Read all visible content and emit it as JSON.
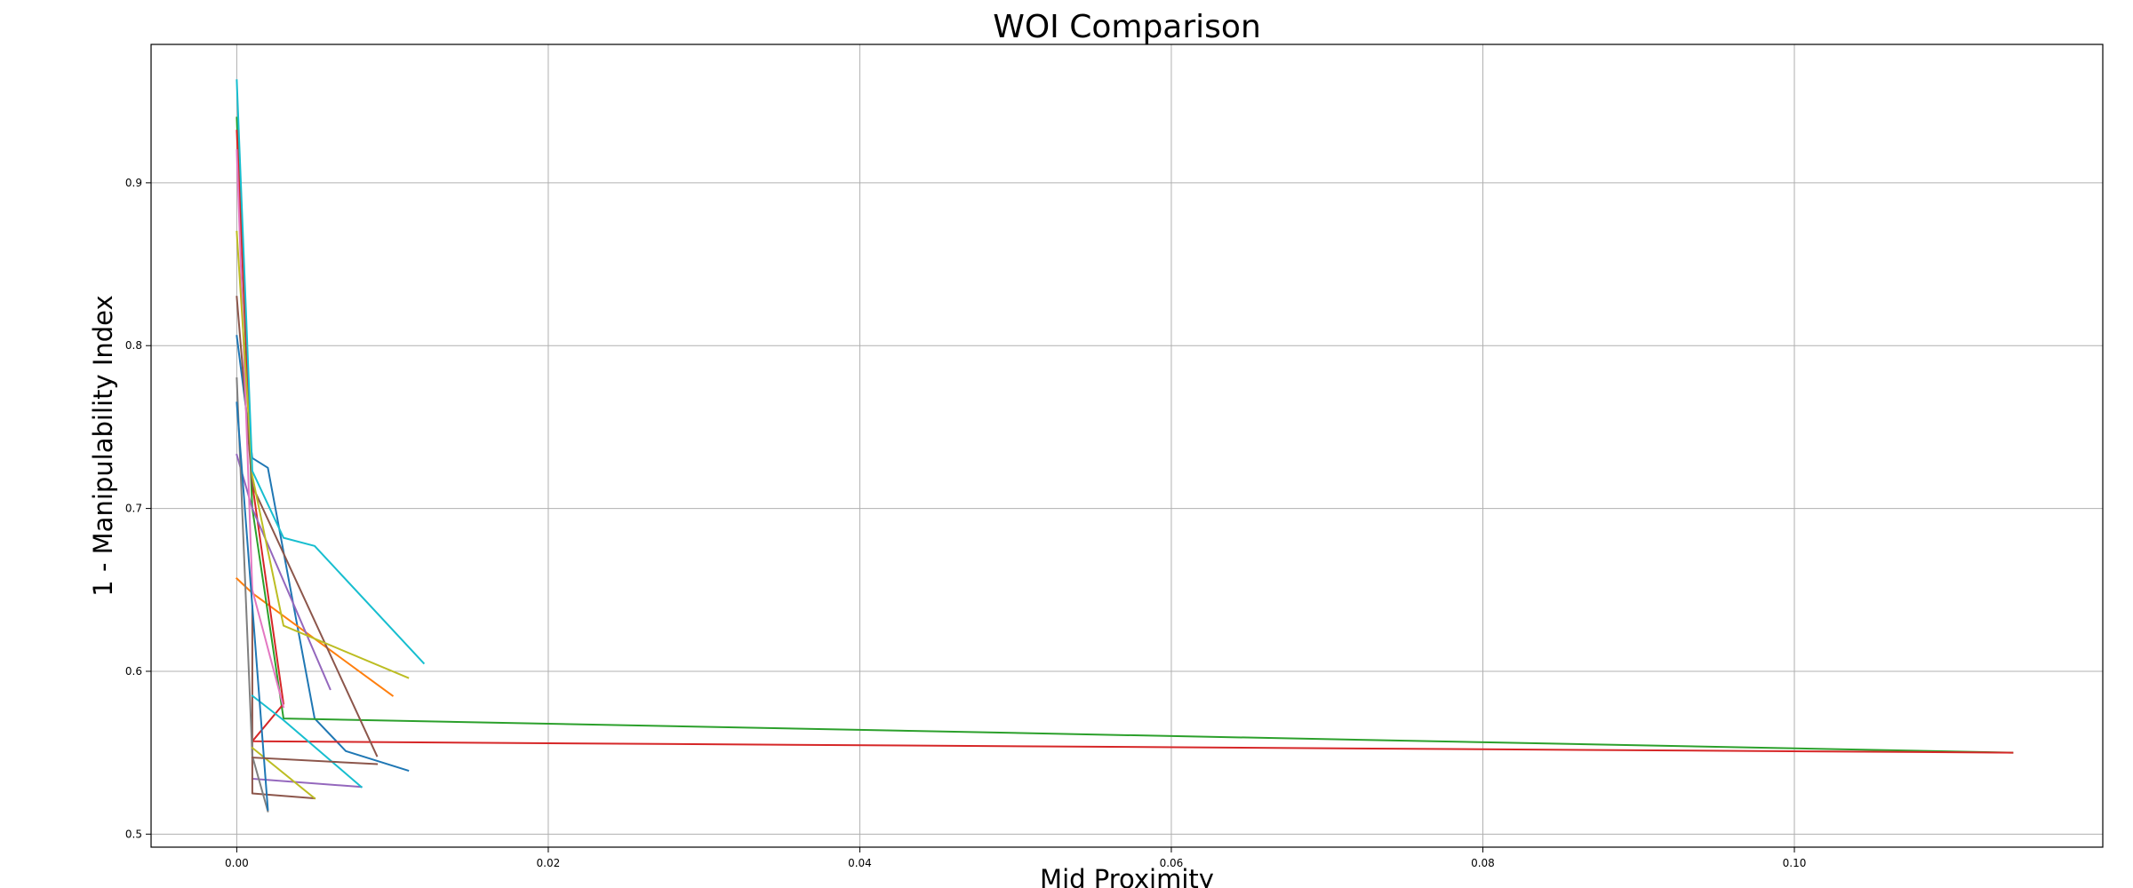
{
  "chart_data": {
    "type": "line",
    "title": "WOI Comparison",
    "xlabel": "Mid Proximity",
    "ylabel": "1 - Manipulability Index",
    "xlim": [
      -0.0055,
      0.1198
    ],
    "ylim": [
      0.492,
      0.985
    ],
    "xticks": [
      0.0,
      0.02,
      0.04,
      0.06,
      0.08,
      0.1
    ],
    "xtick_labels": [
      "0.00",
      "0.02",
      "0.04",
      "0.06",
      "0.08",
      "0.10"
    ],
    "yticks": [
      0.5,
      0.6,
      0.7,
      0.8,
      0.9
    ],
    "ytick_labels": [
      "0.5",
      "0.6",
      "0.7",
      "0.8",
      "0.9"
    ],
    "grid": true,
    "legend": "none",
    "series": [
      {
        "color": "#1f77b4",
        "x": [
          0.0,
          0.001,
          0.002,
          0.005,
          0.007,
          0.011
        ],
        "y": [
          0.806,
          0.731,
          0.725,
          0.571,
          0.551,
          0.539
        ]
      },
      {
        "color": "#ff7f0e",
        "x": [
          0.0,
          0.001,
          0.005,
          0.01
        ],
        "y": [
          0.657,
          0.648,
          0.62,
          0.585
        ]
      },
      {
        "color": "#2ca02c",
        "x": [
          0.0,
          0.001,
          0.003,
          0.114
        ],
        "y": [
          0.94,
          0.7,
          0.571,
          0.55
        ]
      },
      {
        "color": "#d62728",
        "x": [
          0.0,
          0.001,
          0.003,
          0.001,
          0.114
        ],
        "y": [
          0.932,
          0.715,
          0.58,
          0.557,
          0.55
        ]
      },
      {
        "color": "#9467bd",
        "x": [
          0.0,
          0.001,
          0.006
        ],
        "y": [
          0.733,
          0.7,
          0.589
        ]
      },
      {
        "color": "#9467bd",
        "x": [
          0.001,
          0.008
        ],
        "y": [
          0.534,
          0.529
        ]
      },
      {
        "color": "#8c564b",
        "x": [
          0.0,
          0.001,
          0.009
        ],
        "y": [
          0.83,
          0.714,
          0.548
        ]
      },
      {
        "color": "#8c564b",
        "x": [
          0.001,
          0.001,
          0.005
        ],
        "y": [
          0.64,
          0.525,
          0.522
        ]
      },
      {
        "color": "#e377c2",
        "x": [
          0.0,
          0.001,
          0.003
        ],
        "y": [
          0.92,
          0.65,
          0.578
        ]
      },
      {
        "color": "#7f7f7f",
        "x": [
          0.0,
          0.001,
          0.002
        ],
        "y": [
          0.78,
          0.548,
          0.514
        ]
      },
      {
        "color": "#bcbd22",
        "x": [
          0.0,
          0.001,
          0.003,
          0.011
        ],
        "y": [
          0.87,
          0.72,
          0.628,
          0.596
        ]
      },
      {
        "color": "#bcbd22",
        "x": [
          0.001,
          0.005
        ],
        "y": [
          0.553,
          0.522
        ]
      },
      {
        "color": "#17becf",
        "x": [
          0.0,
          0.001,
          0.003,
          0.005,
          0.012
        ],
        "y": [
          0.963,
          0.723,
          0.682,
          0.677,
          0.605
        ]
      },
      {
        "color": "#17becf",
        "x": [
          0.001,
          0.003,
          0.008
        ],
        "y": [
          0.585,
          0.57,
          0.529
        ]
      },
      {
        "color": "#1f77b4",
        "x": [
          0.0,
          0.001,
          0.002
        ],
        "y": [
          0.765,
          0.64,
          0.515
        ]
      },
      {
        "color": "#8c564b",
        "x": [
          0.001,
          0.009
        ],
        "y": [
          0.547,
          0.543
        ]
      }
    ]
  }
}
